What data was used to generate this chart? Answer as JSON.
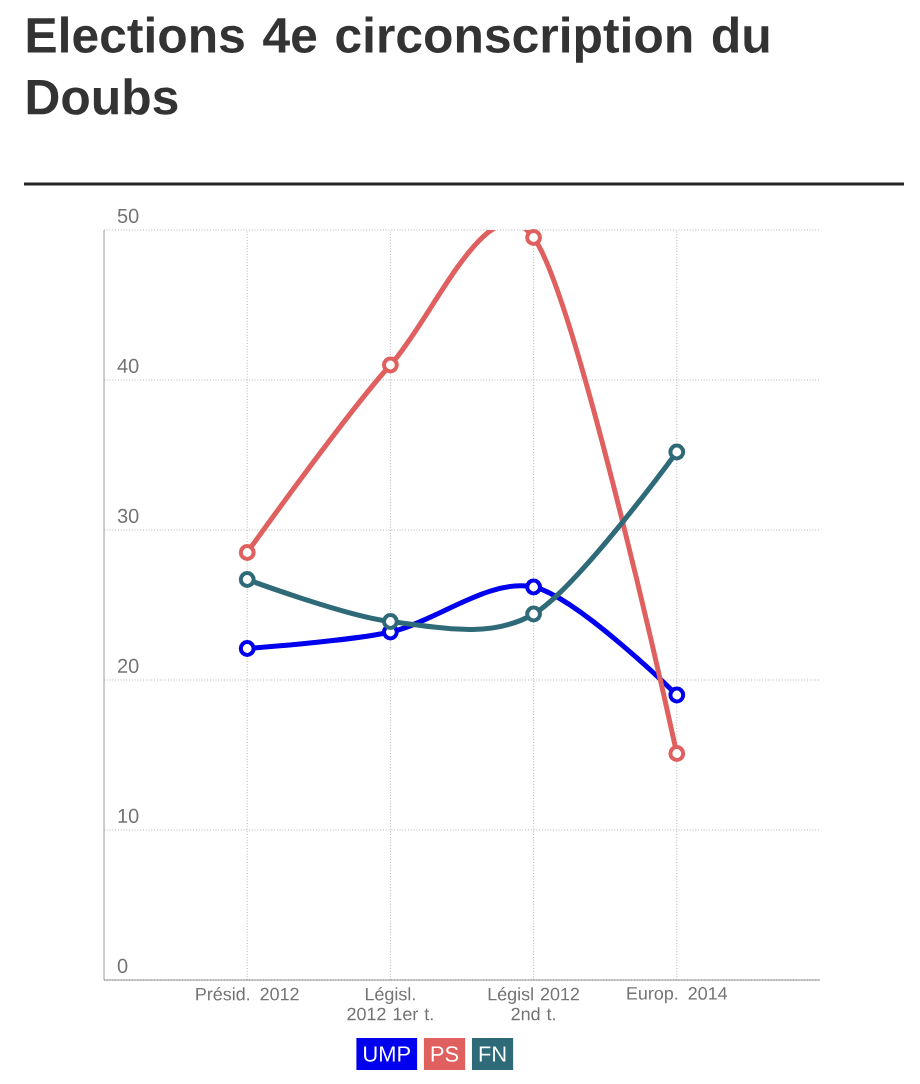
{
  "chart_data": {
    "type": "line",
    "title": "Elections 4e circonscription du Doubs",
    "categories": [
      "Présid. 2012",
      "Législ. 2012 1er t.",
      "Législ 2012 2nd t.",
      "Europ. 2014"
    ],
    "series": [
      {
        "name": "UMP",
        "color": "#0000ee",
        "values": [
          22.1,
          23.2,
          26.2,
          19.0
        ]
      },
      {
        "name": "PS",
        "color": "#e0605f",
        "values": [
          28.5,
          41.0,
          49.5,
          15.1
        ]
      },
      {
        "name": "FN",
        "color": "#2f6a78",
        "values": [
          26.7,
          23.9,
          24.4,
          35.2
        ]
      }
    ],
    "ylim": [
      0,
      50
    ],
    "yticks": [
      0,
      10,
      20,
      30,
      40,
      50
    ],
    "grid": true,
    "legend": "bottom",
    "marker": "circle",
    "line_style": "solid"
  }
}
